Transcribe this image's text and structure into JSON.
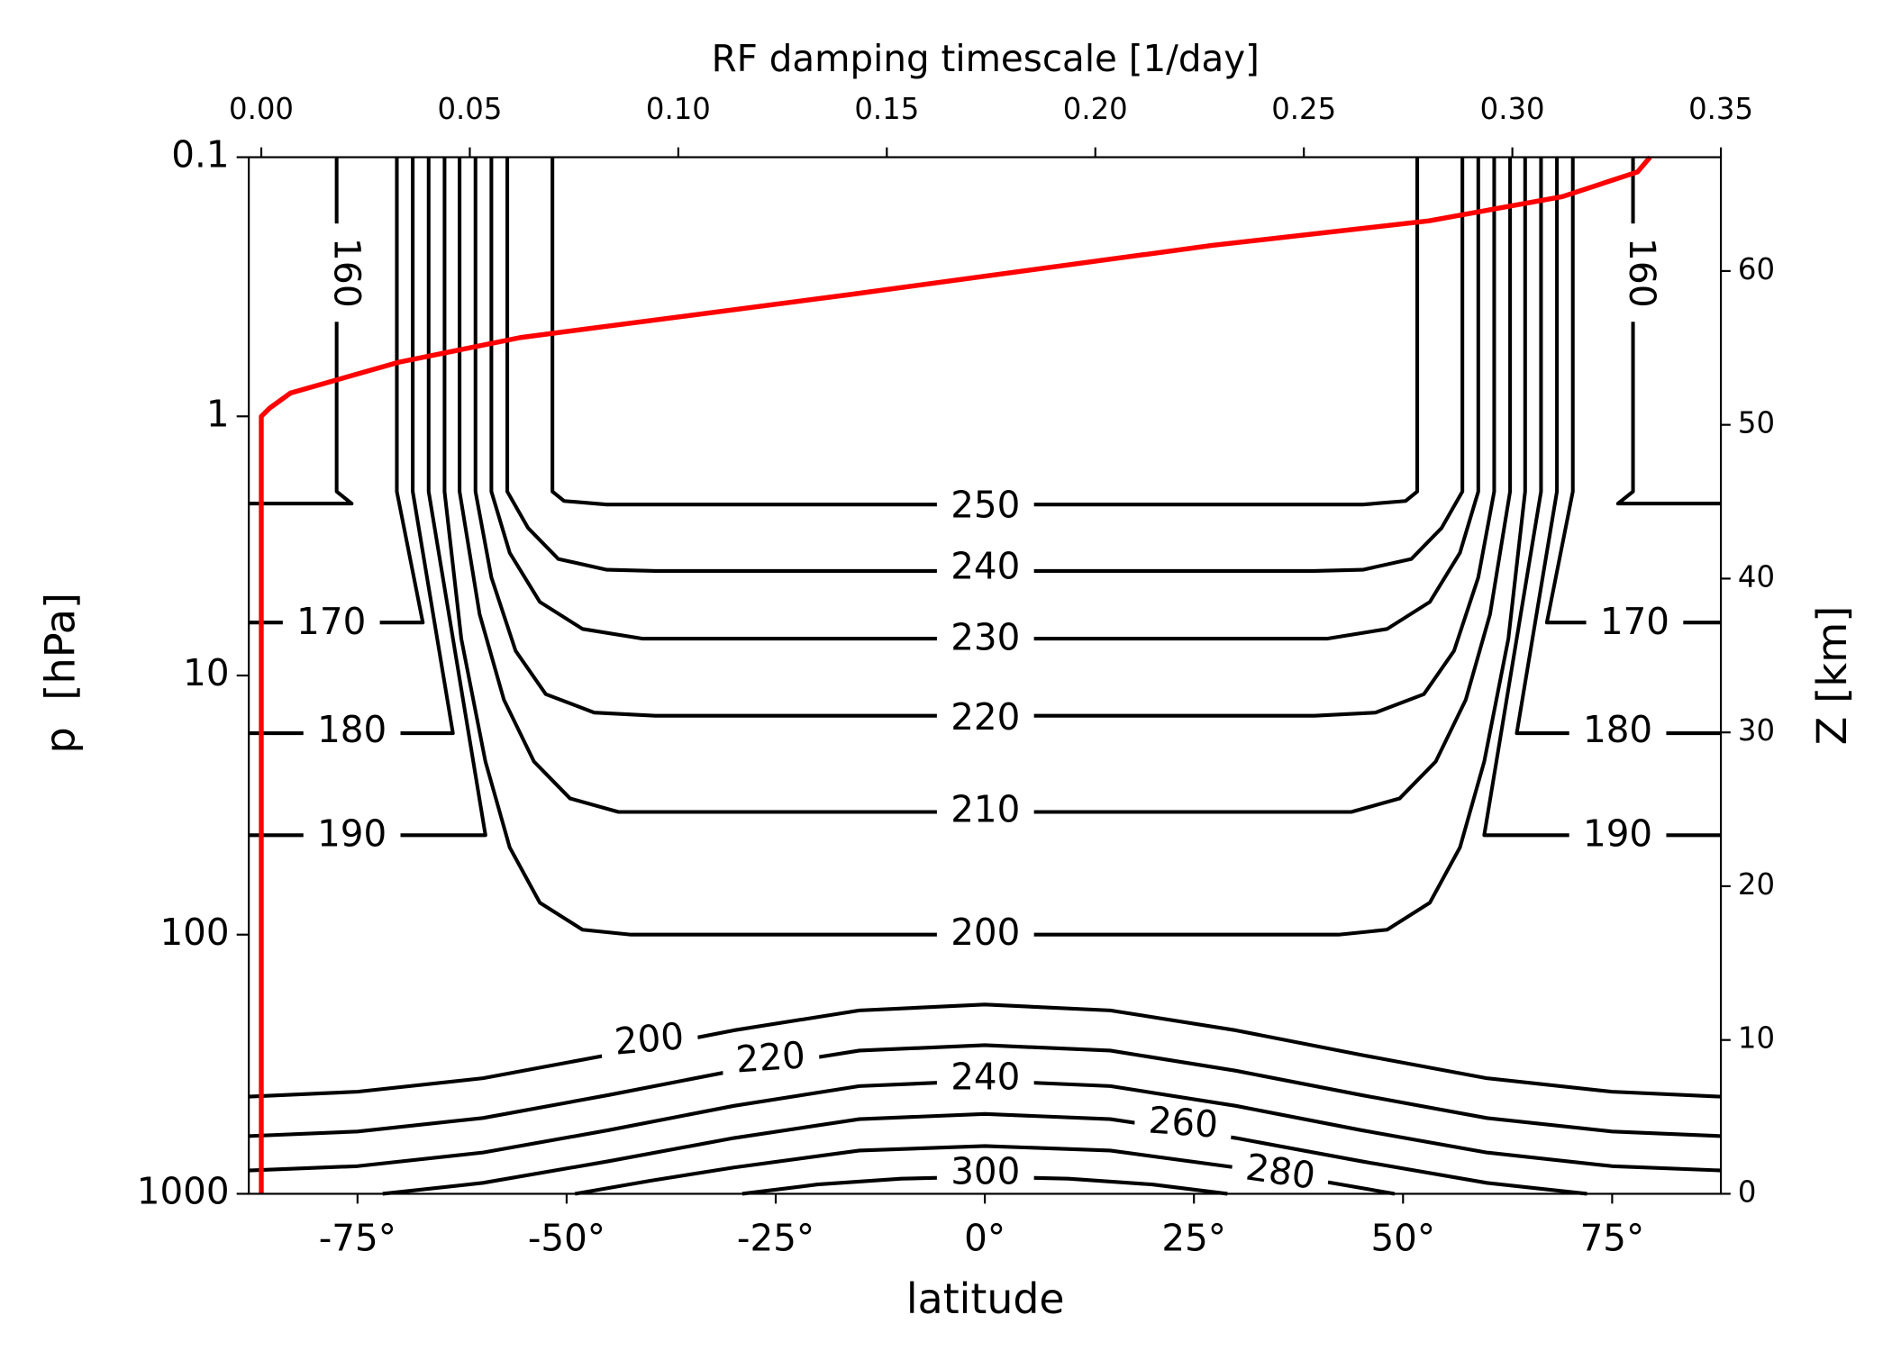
{
  "chart_data": {
    "type": "contour",
    "xlabel": "latitude",
    "ylabel": "p  [hPa]",
    "y2label": "Z [km]",
    "x2label": "RF damping timescale [1/day]",
    "xlim": [
      -88,
      88
    ],
    "xticks": [
      {
        "value": -75,
        "label": "-75°"
      },
      {
        "value": -50,
        "label": "-50°"
      },
      {
        "value": -25,
        "label": "-25°"
      },
      {
        "value": 0,
        "label": "0°"
      },
      {
        "value": 25,
        "label": "25°"
      },
      {
        "value": 50,
        "label": "50°"
      },
      {
        "value": 75,
        "label": "75°"
      }
    ],
    "ylim": [
      1000,
      0.1
    ],
    "yscale": "log",
    "yticks": [
      0.1,
      1,
      10,
      100,
      1000
    ],
    "y2lim": [
      0,
      67.4
    ],
    "y2ticks": [
      0,
      10,
      20,
      30,
      40,
      50,
      60
    ],
    "x2lim": [
      -0.003,
      0.35
    ],
    "x2ticks": [
      {
        "value": 0,
        "label": "0.00"
      },
      {
        "value": 0.05,
        "label": "0.05"
      },
      {
        "value": 0.1,
        "label": "0.10"
      },
      {
        "value": 0.15,
        "label": "0.15"
      },
      {
        "value": 0.2,
        "label": "0.20"
      },
      {
        "value": 0.25,
        "label": "0.25"
      },
      {
        "value": 0.3,
        "label": "0.30"
      },
      {
        "value": 0.35,
        "label": "0.35"
      }
    ],
    "x2color": "#ff0000",
    "contour_color": "#000000",
    "contours": [
      {
        "level": 160,
        "lat": [
          -88,
          -75.7,
          -77.5,
          -77.5
        ],
        "p": [
          2.17,
          2.17,
          1.95,
          0.1
        ]
      },
      {
        "level": 160,
        "lat": [
          88,
          75.7,
          77.5,
          77.5
        ],
        "p": [
          2.17,
          2.17,
          1.95,
          0.1
        ]
      },
      {
        "level": 170,
        "lat": [
          -88,
          -67.2,
          -70.3,
          -70.3
        ],
        "p": [
          6.25,
          6.25,
          1.95,
          0.1
        ]
      },
      {
        "level": 170,
        "lat": [
          88,
          67.2,
          70.3,
          70.3
        ],
        "p": [
          6.25,
          6.25,
          1.95,
          0.1
        ]
      },
      {
        "level": 180,
        "lat": [
          -88,
          -63.6,
          -68.4,
          -68.4
        ],
        "p": [
          16.7,
          16.7,
          1.95,
          0.1
        ]
      },
      {
        "level": 180,
        "lat": [
          88,
          63.6,
          68.4,
          68.4
        ],
        "p": [
          16.7,
          16.7,
          1.95,
          0.1
        ]
      },
      {
        "level": 190,
        "lat": [
          -88,
          -59.7,
          -66.5,
          -66.5
        ],
        "p": [
          41.3,
          41.3,
          1.95,
          0.1
        ]
      },
      {
        "level": 190,
        "lat": [
          88,
          59.7,
          66.5,
          66.5
        ],
        "p": [
          41.3,
          41.3,
          1.95,
          0.1
        ]
      },
      {
        "level": 200,
        "lat": [
          -64.6,
          -64.6,
          -62.6,
          -59.7,
          -56.8,
          -53.2,
          -48.1,
          -42.3,
          42.3,
          48.1,
          53.2,
          56.8,
          59.7,
          62.6,
          64.6,
          64.6
        ],
        "p": [
          0.1,
          1.95,
          7.21,
          21.5,
          46.1,
          75.3,
          95.7,
          100,
          100,
          95.7,
          75.3,
          46.1,
          21.5,
          7.21,
          1.95,
          0.1
        ]
      },
      {
        "level": 210,
        "lat": [
          -62.8,
          -62.8,
          -60.4,
          -57.5,
          -53.9,
          -49.6,
          -43.8,
          43.8,
          49.6,
          53.9,
          57.5,
          60.4,
          62.8,
          62.8
        ],
        "p": [
          0.1,
          1.95,
          5.8,
          12.4,
          21.5,
          29.8,
          33.6,
          33.6,
          29.8,
          21.5,
          12.4,
          5.8,
          1.95,
          0.1
        ]
      },
      {
        "level": 220,
        "lat": [
          -60.9,
          -60.9,
          -59.0,
          -56.1,
          -52.5,
          -46.7,
          -39.4,
          39.4,
          46.7,
          52.5,
          56.1,
          59.0,
          60.9,
          60.9
        ],
        "p": [
          0.1,
          1.95,
          4.18,
          8.04,
          11.8,
          13.9,
          14.3,
          14.3,
          13.9,
          11.8,
          8.04,
          4.18,
          1.95,
          0.1
        ]
      },
      {
        "level": 230,
        "lat": [
          -59.0,
          -59.0,
          -56.8,
          -53.2,
          -48.1,
          -40.9,
          40.9,
          48.1,
          53.2,
          56.8,
          59.0,
          59.0
        ],
        "p": [
          0.1,
          1.95,
          3.36,
          5.2,
          6.61,
          7.21,
          7.21,
          6.61,
          5.2,
          3.36,
          1.95,
          0.1
        ]
      },
      {
        "level": 240,
        "lat": [
          -57.1,
          -57.1,
          -54.6,
          -51.0,
          -45.2,
          -39.4,
          39.4,
          45.2,
          51.0,
          54.6,
          57.1,
          57.1
        ],
        "p": [
          0.1,
          1.95,
          2.7,
          3.55,
          3.91,
          3.95,
          3.95,
          3.91,
          3.55,
          2.7,
          1.95,
          0.1
        ]
      },
      {
        "level": 250,
        "lat": [
          -51.7,
          -51.7,
          -50.3,
          -45.2,
          45.2,
          50.3,
          51.7,
          51.7
        ],
        "p": [
          0.1,
          1.95,
          2.12,
          2.19,
          2.19,
          2.12,
          1.95,
          0.1
        ]
      },
      {
        "level": 200,
        "lat": [
          -88,
          -75,
          -60,
          -45,
          -30,
          -15,
          0,
          15,
          30,
          45,
          60,
          75,
          88
        ],
        "p": [
          422,
          404,
          358,
          291,
          234,
          196,
          186,
          196,
          234,
          291,
          358,
          404,
          422
        ]
      },
      {
        "level": 220,
        "lat": [
          -88,
          -75,
          -60,
          -45,
          -30,
          -15,
          0,
          15,
          30,
          45,
          60,
          75,
          88
        ],
        "p": [
          599,
          575,
          510,
          416,
          335,
          280,
          267,
          280,
          335,
          416,
          510,
          575,
          599
        ]
      },
      {
        "level": 240,
        "lat": [
          -88,
          -75,
          -60,
          -45,
          -30,
          -15,
          0,
          15,
          30,
          45,
          60,
          75,
          88
        ],
        "p": [
          813,
          782,
          693,
          568,
          458,
          384,
          366,
          384,
          458,
          568,
          693,
          782,
          813
        ]
      },
      {
        "level": 260,
        "lat": [
          -72,
          -60,
          -45,
          -30,
          -15,
          0,
          15,
          30,
          45,
          60,
          72
        ],
        "p": [
          1000,
          907,
          749,
          609,
          515,
          492,
          515,
          609,
          749,
          907,
          1000
        ]
      },
      {
        "level": 280,
        "lat": [
          -49,
          -40,
          -30,
          -15,
          0,
          15,
          30,
          40,
          49
        ],
        "p": [
          1000,
          891,
          792,
          681,
          654,
          681,
          792,
          891,
          1000
        ]
      },
      {
        "level": 300,
        "lat": [
          -29,
          -20,
          -10,
          0,
          10,
          20,
          29
        ],
        "p": [
          1000,
          920,
          874,
          859,
          874,
          920,
          1000
        ]
      }
    ],
    "damping": {
      "axis": "x2",
      "color": "#ff0000",
      "x": [
        0,
        0,
        0.002,
        0.007,
        0.033,
        0.062,
        0.141,
        0.228,
        0.28,
        0.312,
        0.33,
        0.333
      ],
      "p": [
        1000,
        1,
        0.93,
        0.813,
        0.618,
        0.497,
        0.339,
        0.219,
        0.176,
        0.142,
        0.114,
        0.1
      ]
    }
  }
}
